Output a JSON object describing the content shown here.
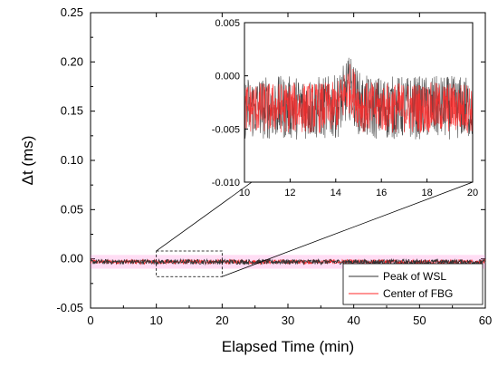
{
  "chart_data": {
    "type": "line",
    "xlabel": "Elapsed Time (min)",
    "ylabel": "Δt (ms)",
    "xlim": [
      0,
      60
    ],
    "ylim": [
      -0.05,
      0.25
    ],
    "x_ticks": [
      0,
      10,
      20,
      30,
      40,
      50,
      60
    ],
    "x_tick_labels": [
      "0",
      "10",
      "20",
      "30",
      "40",
      "50",
      "60"
    ],
    "y_ticks": [
      -0.05,
      0.0,
      0.05,
      0.1,
      0.15,
      0.2,
      0.25
    ],
    "y_tick_labels": [
      "-0.05",
      "0.00",
      "0.05",
      "0.10",
      "0.15",
      "0.20",
      "0.25"
    ],
    "legend_position": "bottom-right",
    "series": [
      {
        "name": "Peak of WSL",
        "color": "#333333",
        "x_range": [
          0,
          60
        ],
        "baseline": -0.003,
        "noise_amplitude": 0.0025
      },
      {
        "name": "Center of FBG",
        "color": "#ff2a2a",
        "x_range": [
          0,
          60
        ],
        "baseline": -0.003,
        "noise_amplitude": 0.0022
      }
    ],
    "zoom_region": {
      "x": [
        10,
        20
      ],
      "y": [
        -0.018,
        0.008
      ]
    },
    "inset": {
      "xlim": [
        10,
        20
      ],
      "ylim": [
        -0.01,
        0.005
      ],
      "x_ticks": [
        10,
        12,
        14,
        16,
        18,
        20
      ],
      "x_tick_labels": [
        "10",
        "12",
        "14",
        "16",
        "18",
        "20"
      ],
      "y_ticks": [
        -0.01,
        -0.005,
        0.0,
        0.005
      ],
      "y_tick_labels": [
        "-0.010",
        "-0.005",
        "0.000",
        "0.005"
      ],
      "baseline": -0.003,
      "bump": {
        "x": 14.6,
        "y": -0.001
      }
    }
  }
}
